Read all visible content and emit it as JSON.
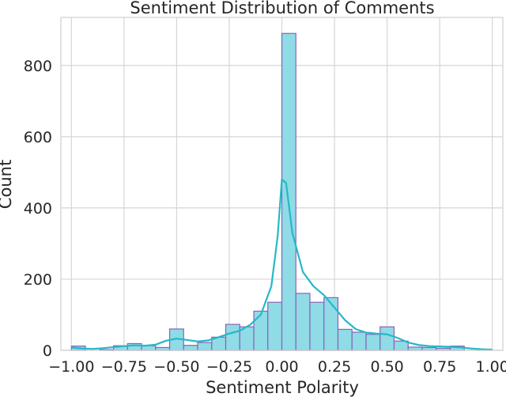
{
  "chart_data": {
    "type": "bar",
    "title": "Sentiment Distribution of Comments",
    "xlabel": "Sentiment Polarity",
    "ylabel": "Count",
    "xlim": [
      -1.05,
      1.05
    ],
    "ylim": [
      0,
      935
    ],
    "x_ticks": [
      -1.0,
      -0.75,
      -0.5,
      -0.25,
      0.0,
      0.25,
      0.5,
      0.75,
      1.0
    ],
    "x_tick_labels": [
      "−1.00",
      "−0.75",
      "−0.50",
      "−0.25",
      "0.00",
      "0.25",
      "0.50",
      "0.75",
      "1.00"
    ],
    "y_ticks": [
      0,
      200,
      400,
      600,
      800
    ],
    "y_tick_labels": [
      "0",
      "200",
      "400",
      "600",
      "800"
    ],
    "grid": true,
    "colors": {
      "bar_fill": "#8fdbe6",
      "bar_edge": "#8a63b8",
      "kde_line": "#27b8c8"
    },
    "bins": [
      {
        "x0": -1.0,
        "x1": -0.9333,
        "count": 12
      },
      {
        "x0": -0.9333,
        "x1": -0.8667,
        "count": 0
      },
      {
        "x0": -0.8667,
        "x1": -0.8,
        "count": 2
      },
      {
        "x0": -0.8,
        "x1": -0.7333,
        "count": 13
      },
      {
        "x0": -0.7333,
        "x1": -0.6667,
        "count": 19
      },
      {
        "x0": -0.6667,
        "x1": -0.6,
        "count": 13
      },
      {
        "x0": -0.6,
        "x1": -0.5333,
        "count": 8
      },
      {
        "x0": -0.5333,
        "x1": -0.4667,
        "count": 60
      },
      {
        "x0": -0.4667,
        "x1": -0.4,
        "count": 14
      },
      {
        "x0": -0.4,
        "x1": -0.3333,
        "count": 22
      },
      {
        "x0": -0.3333,
        "x1": -0.2667,
        "count": 37
      },
      {
        "x0": -0.2667,
        "x1": -0.2,
        "count": 73
      },
      {
        "x0": -0.2,
        "x1": -0.1333,
        "count": 66
      },
      {
        "x0": -0.1333,
        "x1": -0.0667,
        "count": 110
      },
      {
        "x0": -0.0667,
        "x1": 0.0,
        "count": 135
      },
      {
        "x0": 0.0,
        "x1": 0.0667,
        "count": 890
      },
      {
        "x0": 0.0667,
        "x1": 0.1333,
        "count": 160
      },
      {
        "x0": 0.1333,
        "x1": 0.2,
        "count": 135
      },
      {
        "x0": 0.2,
        "x1": 0.2667,
        "count": 148
      },
      {
        "x0": 0.2667,
        "x1": 0.3333,
        "count": 59
      },
      {
        "x0": 0.3333,
        "x1": 0.4,
        "count": 51
      },
      {
        "x0": 0.4,
        "x1": 0.4667,
        "count": 45
      },
      {
        "x0": 0.4667,
        "x1": 0.5333,
        "count": 66
      },
      {
        "x0": 0.5333,
        "x1": 0.6,
        "count": 26
      },
      {
        "x0": 0.6,
        "x1": 0.6667,
        "count": 9
      },
      {
        "x0": 0.6667,
        "x1": 0.7333,
        "count": 8
      },
      {
        "x0": 0.7333,
        "x1": 0.8,
        "count": 6
      },
      {
        "x0": 0.8,
        "x1": 0.8667,
        "count": 12
      },
      {
        "x0": 0.8667,
        "x1": 0.9333,
        "count": 0
      },
      {
        "x0": 0.9333,
        "x1": 1.0,
        "count": 0
      }
    ],
    "kde": {
      "x": [
        -1.0,
        -0.95,
        -0.9,
        -0.85,
        -0.8,
        -0.75,
        -0.7,
        -0.65,
        -0.6,
        -0.55,
        -0.5,
        -0.45,
        -0.4,
        -0.35,
        -0.3,
        -0.25,
        -0.2,
        -0.15,
        -0.1,
        -0.05,
        -0.02,
        0.0,
        0.02,
        0.05,
        0.1,
        0.15,
        0.2,
        0.25,
        0.3,
        0.35,
        0.4,
        0.45,
        0.5,
        0.55,
        0.6,
        0.65,
        0.7,
        0.75,
        0.8,
        0.85,
        0.9,
        0.95,
        1.0
      ],
      "y": [
        8,
        5,
        4,
        6,
        9,
        12,
        14,
        13,
        16,
        27,
        33,
        29,
        25,
        28,
        37,
        47,
        55,
        72,
        100,
        180,
        320,
        480,
        470,
        330,
        220,
        180,
        155,
        120,
        85,
        60,
        50,
        47,
        45,
        35,
        22,
        15,
        12,
        11,
        10,
        8,
        5,
        3,
        2
      ]
    }
  }
}
